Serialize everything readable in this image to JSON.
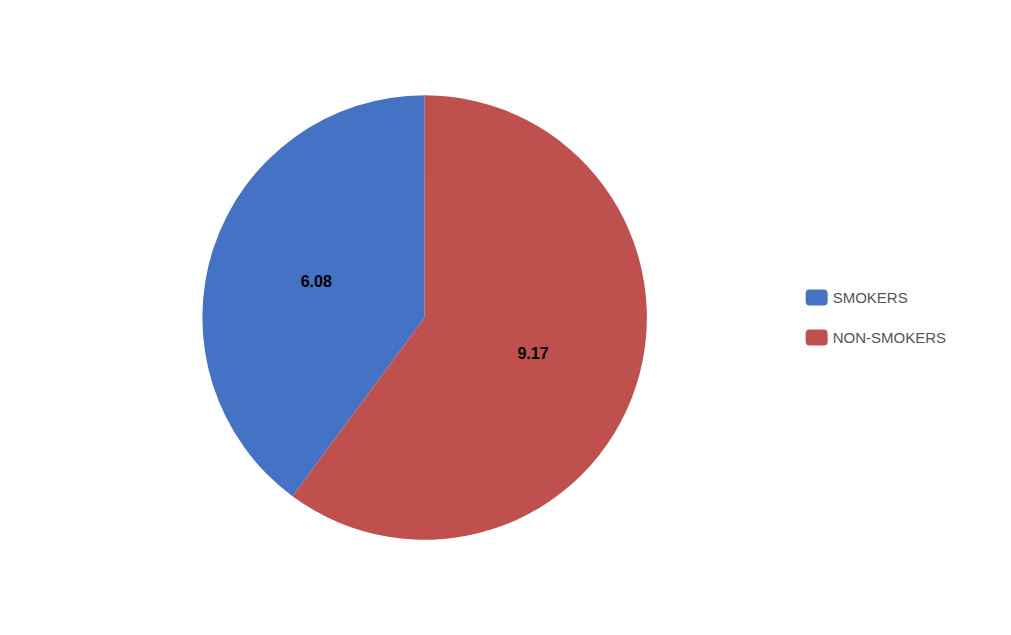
{
  "chart_data": {
    "type": "pie",
    "categories": [
      "SMOKERS",
      "NON-SMOKERS"
    ],
    "values": [
      6.08,
      9.17
    ],
    "colors": [
      "#4472C4",
      "#C0504D"
    ],
    "data_labels": true,
    "legend": "right"
  }
}
